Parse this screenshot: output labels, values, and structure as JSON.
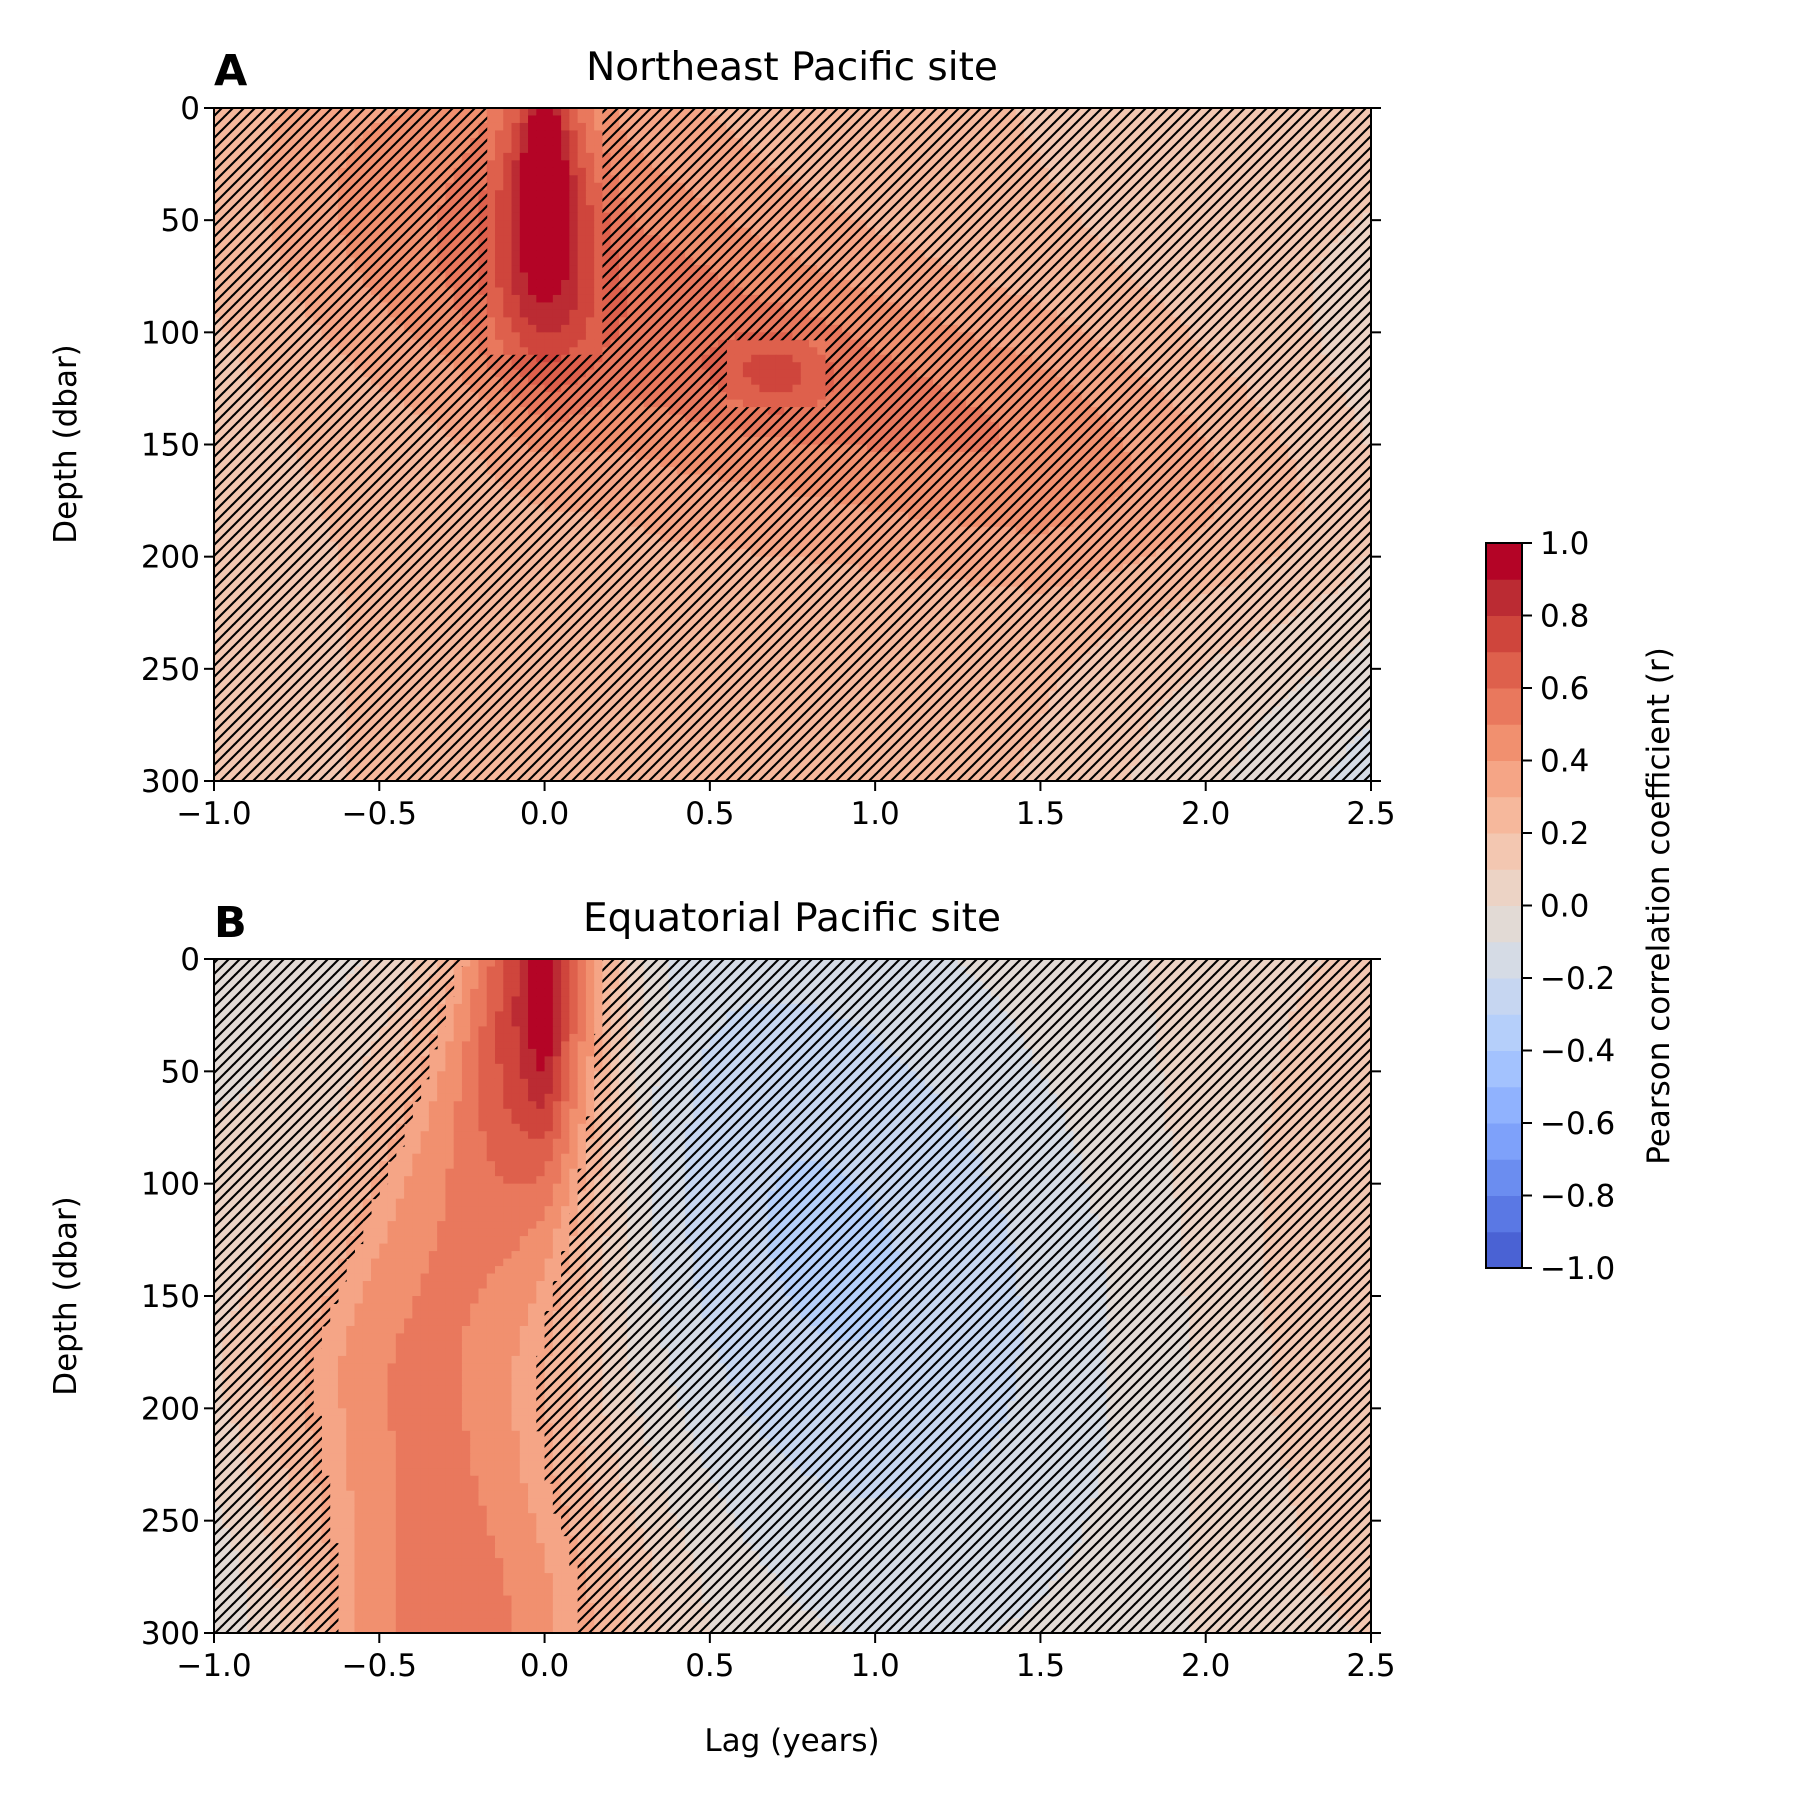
{
  "chart_data": [
    {
      "type": "heatmap",
      "panel_label": "A",
      "title": "Northeast Pacific site",
      "xlabel": "",
      "ylabel": "Depth (dbar)",
      "xlim": [
        -1.0,
        2.5
      ],
      "ylim": [
        300,
        0
      ],
      "x_ticks": [
        "−1.0",
        "−0.5",
        "0.0",
        "0.5",
        "1.0",
        "1.5",
        "2.0",
        "2.5"
      ],
      "y_ticks": [
        "0",
        "50",
        "100",
        "150",
        "200",
        "250",
        "300"
      ],
      "hatch_meaning": "not significant",
      "regions": [
        {
          "description": "peak correlation core at lag 0, surface",
          "lag": 0.0,
          "depth_range": [
            10,
            40
          ],
          "r": 0.9
        },
        {
          "description": "significant band around lag 0",
          "lag_range": [
            -0.2,
            0.15
          ],
          "depth_range": [
            0,
            110
          ],
          "r": 0.6
        },
        {
          "description": "patch",
          "lag_range": [
            0.55,
            0.85
          ],
          "depth_range": [
            105,
            135
          ],
          "r": 0.6
        },
        {
          "description": "subsurface propagation diagonal",
          "lag_range": [
            0.5,
            2.0
          ],
          "depth_range": [
            80,
            200
          ],
          "r": 0.45
        },
        {
          "description": "bottom right corner",
          "lag": 2.5,
          "depth": 300,
          "r": -0.15
        }
      ]
    },
    {
      "type": "heatmap",
      "panel_label": "B",
      "title": "Equatorial Pacific site",
      "xlabel": "Lag (years)",
      "ylabel": "Depth (dbar)",
      "xlim": [
        -1.0,
        2.5
      ],
      "ylim": [
        300,
        0
      ],
      "x_ticks": [
        "−1.0",
        "−0.5",
        "0.0",
        "0.5",
        "1.0",
        "1.5",
        "2.0",
        "2.5"
      ],
      "y_ticks": [
        "0",
        "50",
        "100",
        "150",
        "200",
        "250",
        "300"
      ],
      "hatch_meaning": "not significant",
      "regions": [
        {
          "description": "peak correlation core",
          "lag": 0.0,
          "depth_range": [
            0,
            70
          ],
          "r": 0.95
        },
        {
          "description": "strong positive tongue",
          "lag_range": [
            -0.3,
            0.3
          ],
          "depth_range": [
            0,
            130
          ],
          "r": 0.75
        },
        {
          "description": "positive region widening with depth",
          "lag_range": [
            -0.8,
            0.4
          ],
          "depth_range": [
            0,
            300
          ],
          "r": 0.35
        },
        {
          "description": "negative lobe",
          "lag": 0.8,
          "depth": 130,
          "r": -0.3
        },
        {
          "description": "bottom left corner",
          "lag": -1.0,
          "depth": 300,
          "r": -0.2
        }
      ]
    }
  ],
  "colorbar": {
    "label": "Pearson correlation coefficient (r)",
    "ticks": [
      "1.0",
      "0.8",
      "0.6",
      "0.4",
      "0.2",
      "0.0",
      "−0.2",
      "−0.4",
      "−0.6",
      "−0.8",
      "−1.0"
    ],
    "tick_values": [
      1.0,
      0.8,
      0.6,
      0.4,
      0.2,
      0.0,
      -0.2,
      -0.4,
      -0.6,
      -0.8,
      -1.0
    ],
    "range": [
      -1.0,
      1.0
    ],
    "levels": 20,
    "colormap": "coolwarm",
    "colors": [
      "#3b4cc0",
      "#4a62d4",
      "#5a78e4",
      "#6b8df0",
      "#7ea1fa",
      "#90b2fe",
      "#a3c2fe",
      "#b5cffa",
      "#c6d6f1",
      "#d5dbe5",
      "#e2dad5",
      "#ecd3c5",
      "#f3c7b1",
      "#f6b89c",
      "#f5a586",
      "#f1906f",
      "#e9785d",
      "#de604c",
      "#cf453c",
      "#bb2b33",
      "#b40426"
    ]
  }
}
